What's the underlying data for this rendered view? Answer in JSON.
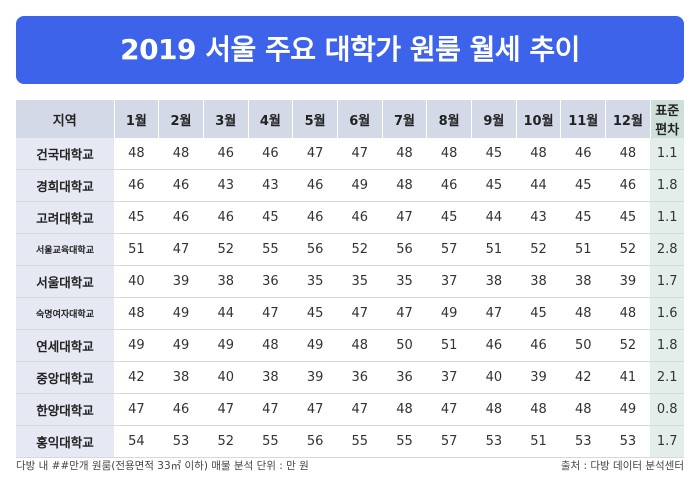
{
  "title": "2019 서울 주요 대학가 원룸 월세 추이",
  "footer": {
    "note": "다방 내 ##만개 원룸(전용면적 33㎡ 이하) 매물 분석   단위 : 만 원",
    "source": "출처 : 다방 데이터 분석센터"
  },
  "chart_data": {
    "type": "table",
    "title": "2019 서울 주요 대학가 원룸 월세 추이",
    "columns": [
      "지역",
      "1월",
      "2월",
      "3월",
      "4월",
      "5월",
      "6월",
      "7월",
      "8월",
      "9월",
      "10월",
      "11월",
      "12월",
      "표준편차"
    ],
    "rows": [
      {
        "region": "건국대학교",
        "values": [
          "48",
          "48",
          "46",
          "46",
          "47",
          "47",
          "48",
          "48",
          "45",
          "48",
          "46",
          "48"
        ],
        "sd": "1.1"
      },
      {
        "region": "경희대학교",
        "values": [
          "46",
          "46",
          "43",
          "43",
          "46",
          "49",
          "48",
          "46",
          "45",
          "44",
          "45",
          "46"
        ],
        "sd": "1.8"
      },
      {
        "region": "고려대학교",
        "values": [
          "45",
          "46",
          "46",
          "45",
          "46",
          "46",
          "47",
          "45",
          "44",
          "43",
          "45",
          "45"
        ],
        "sd": "1.1"
      },
      {
        "region": "서울교육대학교",
        "values": [
          "51",
          "47",
          "52",
          "55",
          "56",
          "52",
          "56",
          "57",
          "51",
          "52",
          "51",
          "52"
        ],
        "sd": "2.8"
      },
      {
        "region": "서울대학교",
        "values": [
          "40",
          "39",
          "38",
          "36",
          "35",
          "35",
          "35",
          "37",
          "38",
          "38",
          "38",
          "39"
        ],
        "sd": "1.7"
      },
      {
        "region": "숙명여자대학교",
        "values": [
          "48",
          "49",
          "44",
          "47",
          "45",
          "47",
          "47",
          "49",
          "47",
          "45",
          "48",
          "48"
        ],
        "sd": "1.6"
      },
      {
        "region": "연세대학교",
        "values": [
          "49",
          "49",
          "49",
          "48",
          "49",
          "48",
          "50",
          "51",
          "46",
          "46",
          "50",
          "52"
        ],
        "sd": "1.8"
      },
      {
        "region": "중앙대학교",
        "values": [
          "42",
          "38",
          "40",
          "38",
          "39",
          "36",
          "36",
          "37",
          "40",
          "39",
          "42",
          "41"
        ],
        "sd": "2.1"
      },
      {
        "region": "한양대학교",
        "values": [
          "47",
          "46",
          "47",
          "47",
          "47",
          "47",
          "48",
          "47",
          "48",
          "48",
          "48",
          "49"
        ],
        "sd": "0.8"
      },
      {
        "region": "홍익대학교",
        "values": [
          "54",
          "53",
          "52",
          "55",
          "56",
          "55",
          "55",
          "57",
          "53",
          "51",
          "53",
          "53"
        ],
        "sd": "1.7"
      }
    ]
  }
}
